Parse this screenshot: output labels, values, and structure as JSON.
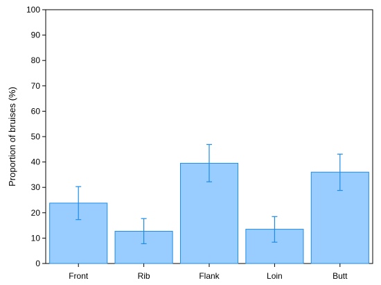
{
  "chart_data": {
    "type": "bar",
    "title": "",
    "xlabel": "",
    "ylabel": "Proportion of bruises (%)",
    "ylim": [
      0,
      100
    ],
    "yticks": [
      0,
      10,
      20,
      30,
      40,
      50,
      60,
      70,
      80,
      90,
      100
    ],
    "grid": false,
    "categories": [
      "Front",
      "Rib",
      "Flank",
      "Loin",
      "Butt"
    ],
    "values": [
      23.8,
      12.7,
      39.5,
      13.5,
      36.0
    ],
    "error_low": [
      17.3,
      7.8,
      32.2,
      8.4,
      28.8
    ],
    "error_high": [
      30.3,
      17.7,
      46.9,
      18.5,
      43.1
    ],
    "colors": {
      "bar_fill": "#99ccff",
      "bar_stroke": "#1e8ce6",
      "error_bar": "#1e8ce6",
      "axis": "#000000"
    }
  }
}
